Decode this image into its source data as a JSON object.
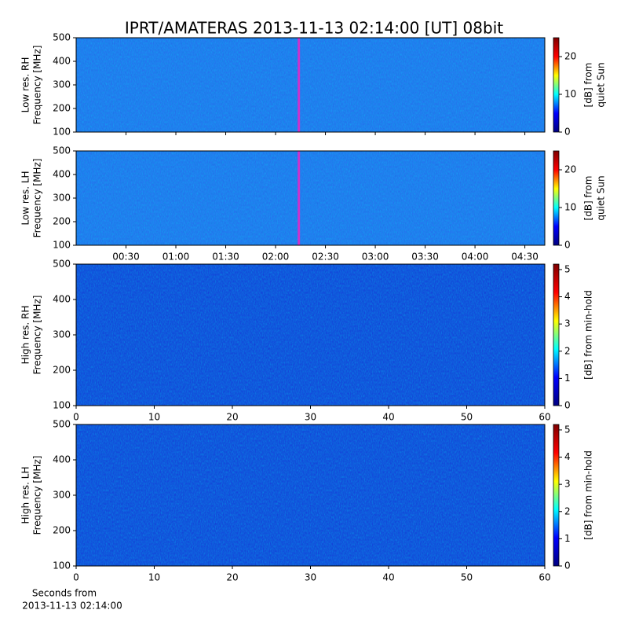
{
  "title": "IPRT/AMATERAS 2013-11-13 02:14:00 [UT]   08bit",
  "colormap": [
    "#00007f",
    "#0000ff",
    "#00ffff",
    "#ffff00",
    "#ff0000",
    "#7f0000"
  ],
  "chart_data": [
    {
      "type": "heatmap",
      "ylabel": [
        "Low res. RH",
        "Frequency [MHz]"
      ],
      "ylim": [
        100,
        500
      ],
      "yticks": [
        100,
        200,
        300,
        400,
        500
      ],
      "xlim": [
        0,
        282
      ],
      "xticks": [
        30,
        60,
        90,
        120,
        150,
        180,
        210,
        240,
        270
      ],
      "cursor": 134,
      "cursor_color": "#cc33cc",
      "background": "#2a6ef0",
      "colorbar_label": [
        "[dB] from",
        "quiet Sun"
      ],
      "clim": [
        0,
        25
      ],
      "cticks": [
        0,
        10,
        20
      ]
    },
    {
      "type": "heatmap",
      "ylabel": [
        "Low res. LH",
        "Frequency [MHz]"
      ],
      "ylim": [
        100,
        500
      ],
      "yticks": [
        100,
        200,
        300,
        400,
        500
      ],
      "xlim": [
        0,
        282
      ],
      "xticks": [
        {
          "value": 30,
          "label": "00:30"
        },
        {
          "value": 60,
          "label": "01:00"
        },
        {
          "value": 90,
          "label": "01:30"
        },
        {
          "value": 120,
          "label": "02:00"
        },
        {
          "value": 150,
          "label": "02:30"
        },
        {
          "value": 180,
          "label": "03:00"
        },
        {
          "value": 210,
          "label": "03:30"
        },
        {
          "value": 240,
          "label": "04:00"
        },
        {
          "value": 270,
          "label": "04:30"
        }
      ],
      "cursor": 134,
      "cursor_color": "#cc33cc",
      "background": "#2a6ef0",
      "colorbar_label": [
        "[dB] from",
        "quiet Sun"
      ],
      "clim": [
        0,
        25
      ],
      "cticks": [
        0,
        10,
        20
      ]
    },
    {
      "type": "heatmap",
      "ylabel": [
        "High res. RH",
        "Frequency [MHz]"
      ],
      "ylim": [
        100,
        500
      ],
      "yticks": [
        100,
        200,
        300,
        400,
        500
      ],
      "xlim": [
        0,
        60
      ],
      "xticks": [
        0,
        10,
        20,
        30,
        40,
        50,
        60
      ],
      "background": "#1638d8",
      "colorbar_label": [
        "[dB] from min-hold"
      ],
      "clim": [
        0,
        5.2
      ],
      "cticks": [
        0,
        1,
        2,
        3,
        4,
        5
      ]
    },
    {
      "type": "heatmap",
      "ylabel": [
        "High res. LH",
        "Frequency [MHz]"
      ],
      "ylim": [
        100,
        500
      ],
      "yticks": [
        100,
        200,
        300,
        400,
        500
      ],
      "xlim": [
        0,
        60
      ],
      "xticks": [
        0,
        10,
        20,
        30,
        40,
        50,
        60
      ],
      "background": "#1638d8",
      "xlabel": [
        "Seconds from",
        "2013-11-13 02:14:00"
      ],
      "colorbar_label": [
        "[dB] from min-hold"
      ],
      "clim": [
        0,
        5.2
      ],
      "cticks": [
        0,
        1,
        2,
        3,
        4,
        5
      ]
    }
  ]
}
